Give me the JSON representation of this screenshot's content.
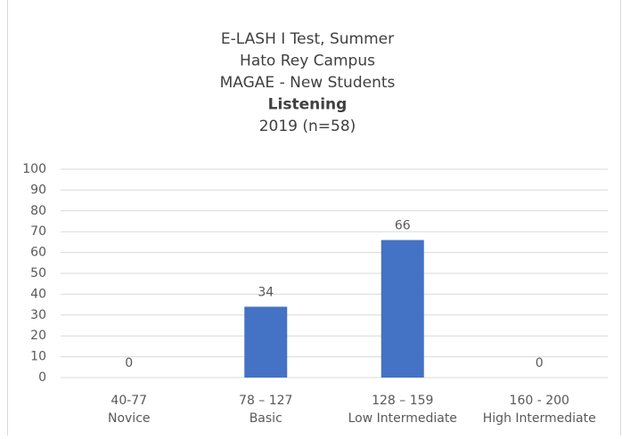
{
  "chart_data": {
    "type": "bar",
    "title": [
      "E-LASH I Test, Summer",
      "Hato Rey Campus",
      "MAGAE - New Students",
      "Listening",
      "2019 (n=58)"
    ],
    "categories": [
      [
        "40-77",
        "Novice"
      ],
      [
        "78 – 127",
        "Basic"
      ],
      [
        "128 – 159",
        "Low Intermediate"
      ],
      [
        "160 - 200",
        "High Intermediate"
      ]
    ],
    "values": [
      0,
      34,
      66,
      0
    ],
    "color": "#4472c4",
    "ylim": [
      0,
      100
    ],
    "yticks": [
      0,
      10,
      20,
      30,
      40,
      50,
      60,
      70,
      80,
      90,
      100
    ],
    "grid": true
  }
}
